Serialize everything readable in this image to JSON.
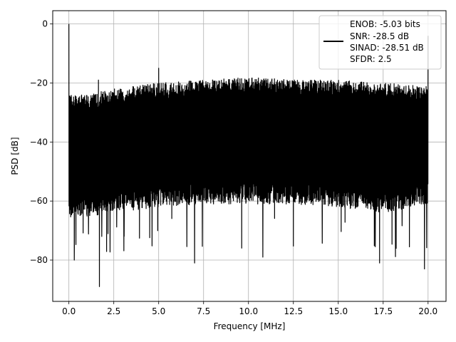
{
  "chart_data": {
    "type": "line",
    "xlabel": "Frequency [MHz]",
    "ylabel": "PSD [dB]",
    "xlim": [
      -0.9,
      21.0
    ],
    "ylim": [
      -94,
      4.5
    ],
    "xticks": [
      0.0,
      2.5,
      5.0,
      7.5,
      10.0,
      12.5,
      15.0,
      17.5,
      20.0
    ],
    "xtick_labels": [
      "0.0",
      "2.5",
      "5.0",
      "7.5",
      "10.0",
      "12.5",
      "15.0",
      "17.5",
      "20.0"
    ],
    "yticks": [
      0,
      -20,
      -40,
      -60,
      -80
    ],
    "ytick_labels": [
      "0",
      "−20",
      "−40",
      "−60",
      "−80"
    ],
    "grid": true,
    "legend_position": "top-right",
    "series": [
      {
        "name": "ENOB: -5.03 bits\nSNR: -28.5 dB\nSINAD: -28.51 dB\nSFDR: 2.5",
        "legend_lines": [
          "ENOB: -5.03 bits",
          "SNR: -28.5 dB",
          "SINAD: -28.51 dB",
          "SFDR: 2.5"
        ],
        "color": "#000000",
        "x_range": [
          0.0,
          20.0
        ],
        "peak_at_0_mhz": 0,
        "upper_envelope": [
          [
            0.0,
            -24
          ],
          [
            1.0,
            -24
          ],
          [
            2.5,
            -22
          ],
          [
            5.0,
            -20
          ],
          [
            7.5,
            -19
          ],
          [
            10.0,
            -18
          ],
          [
            12.5,
            -19
          ],
          [
            15.0,
            -19
          ],
          [
            17.5,
            -20
          ],
          [
            20.0,
            -21
          ]
        ],
        "lower_envelope": [
          [
            0.0,
            -62
          ],
          [
            2.5,
            -60
          ],
          [
            5.0,
            -58
          ],
          [
            7.5,
            -57
          ],
          [
            10.0,
            -57
          ],
          [
            12.5,
            -57
          ],
          [
            15.0,
            -58
          ],
          [
            17.5,
            -60
          ],
          [
            20.0,
            -57
          ]
        ],
        "notable_peaks": [
          [
            0.0,
            0
          ],
          [
            1.65,
            -19
          ],
          [
            5.0,
            -15
          ],
          [
            20.0,
            -4
          ]
        ],
        "notable_dips": [
          [
            1.7,
            -89
          ],
          [
            7.0,
            -81
          ],
          [
            19.8,
            -83
          ],
          [
            0.3,
            -80
          ],
          [
            10.8,
            -79
          ],
          [
            17.3,
            -81
          ]
        ]
      }
    ]
  }
}
